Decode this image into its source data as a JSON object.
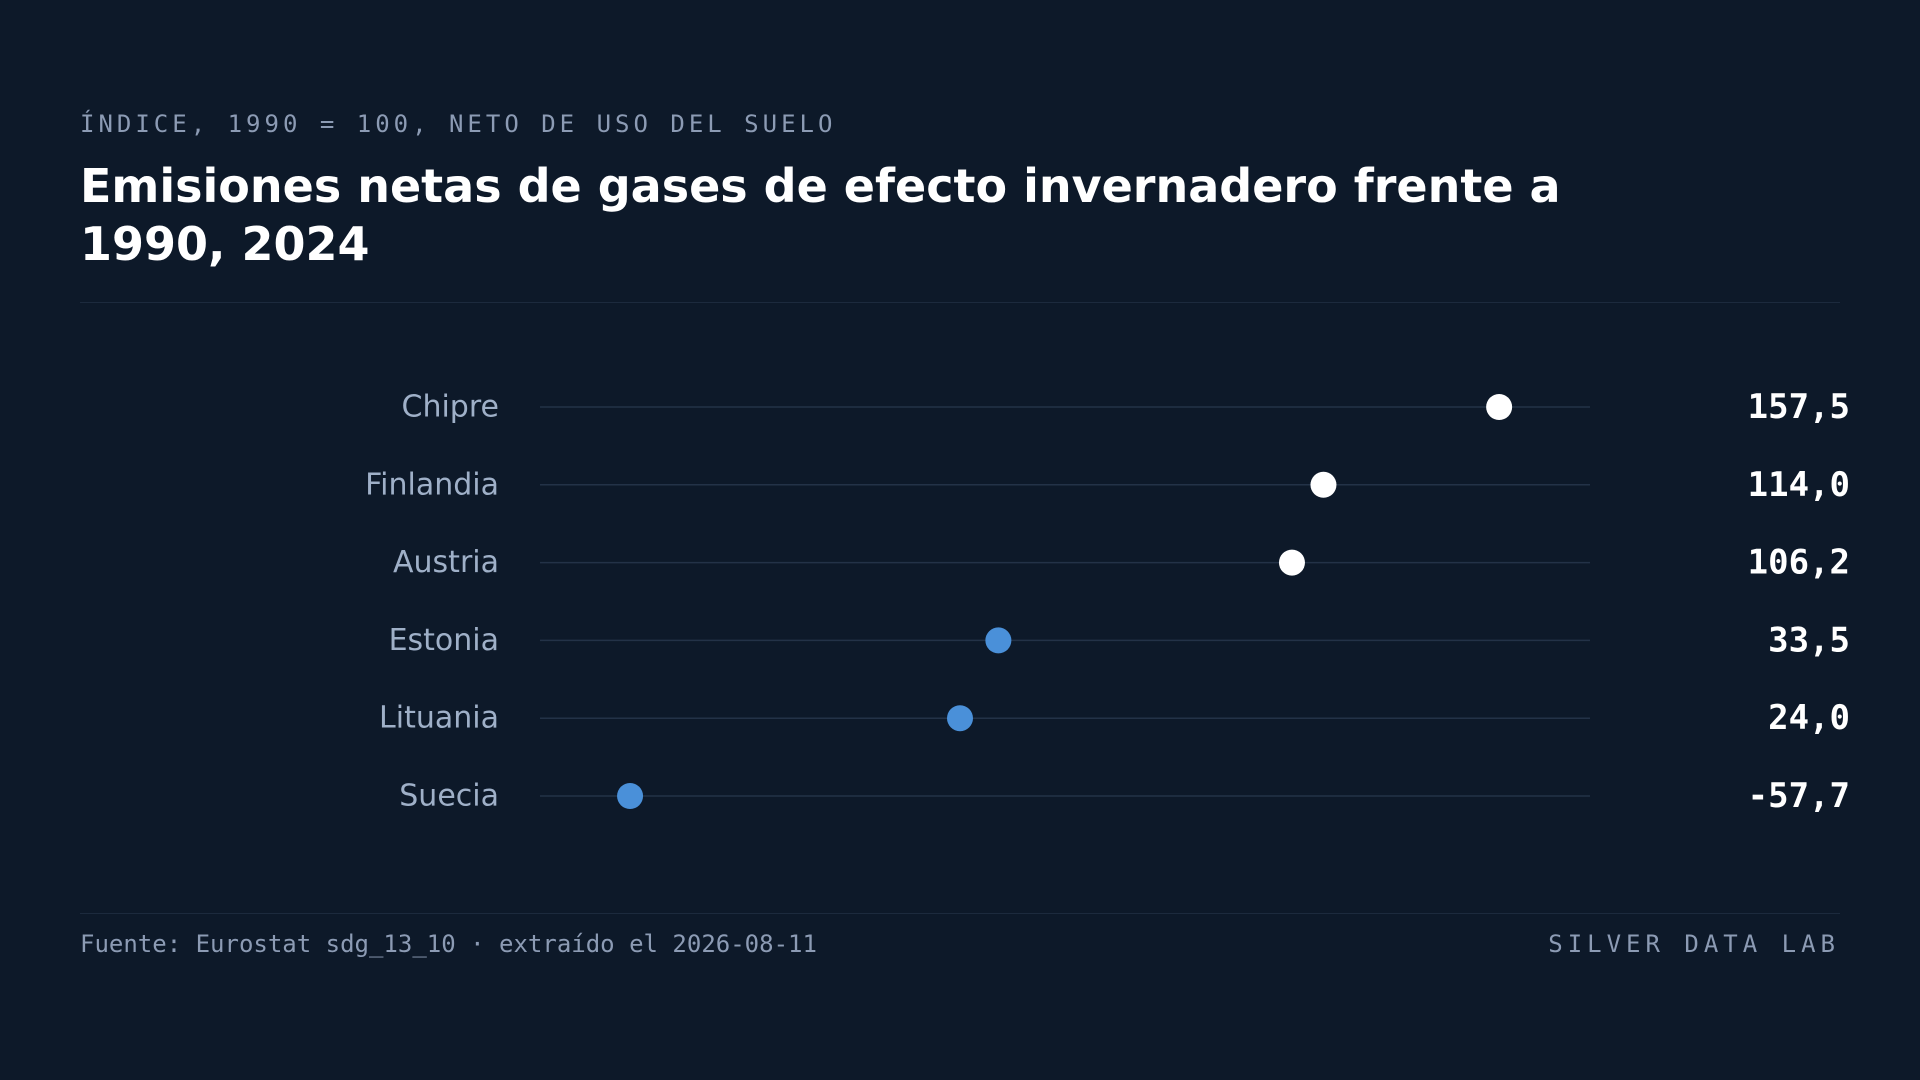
{
  "header": {
    "kicker": "ÍNDICE, 1990 = 100, NETO DE USO DEL SUELO",
    "title": "Emisiones netas de gases de efecto invernadero frente a 1990, 2024"
  },
  "footer": {
    "source": "Fuente: Eurostat sdg_13_10 · extraído el 2026-08-11",
    "brand": "SILVER DATA LAB"
  },
  "colors": {
    "background": "#0d1929",
    "above_100": "#ffffff",
    "below_100": "#4a90d9",
    "track": "#233247"
  },
  "chart_data": {
    "type": "dot",
    "orientation": "horizontal",
    "title": "Emisiones netas de gases de efecto invernadero frente a 1990, 2024",
    "subtitle": "ÍNDICE, 1990 = 100, NETO DE USO DEL SUELO",
    "xlim": [
      -80,
      180
    ],
    "grid": false,
    "legend": "none",
    "rows": [
      {
        "label": "Chipre",
        "value": 157.5,
        "display": "157,5"
      },
      {
        "label": "Finlandia",
        "value": 114.0,
        "display": "114,0"
      },
      {
        "label": "Austria",
        "value": 106.2,
        "display": "106,2"
      },
      {
        "label": "Estonia",
        "value": 33.5,
        "display": "33,5"
      },
      {
        "label": "Lituania",
        "value": 24.0,
        "display": "24,0"
      },
      {
        "label": "Suecia",
        "value": -57.7,
        "display": "-57,7"
      }
    ]
  }
}
